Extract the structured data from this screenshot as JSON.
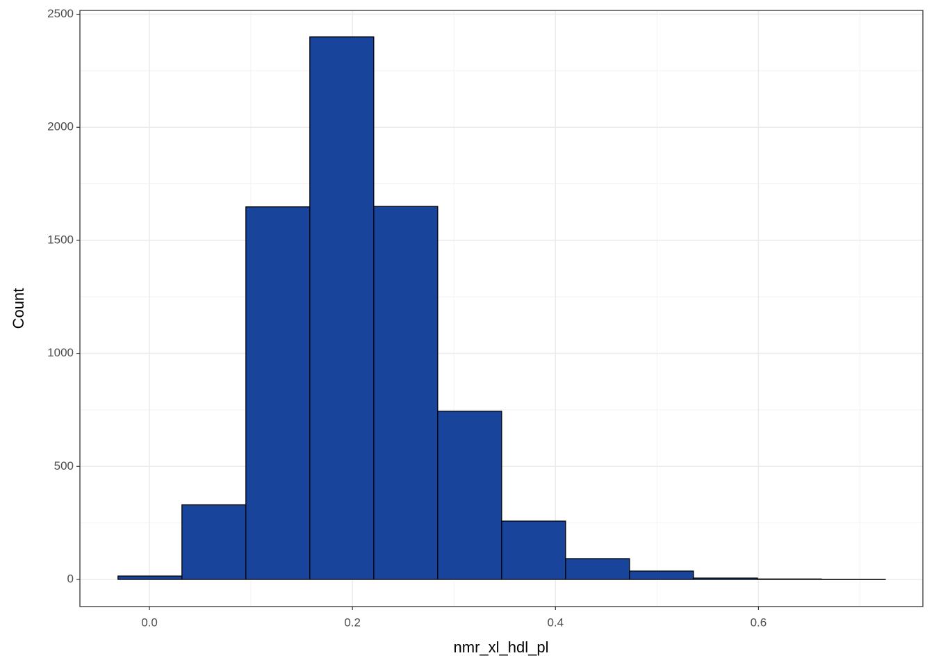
{
  "chart_data": {
    "type": "histogram",
    "x_label": "nmr_xl_hdl_pl",
    "y_label": "Count",
    "bins": [
      -0.031,
      0.032,
      0.095,
      0.158,
      0.221,
      0.284,
      0.347,
      0.41,
      0.473,
      0.536,
      0.599,
      0.662,
      0.725
    ],
    "values": [
      15,
      330,
      1648,
      2400,
      1650,
      744,
      258,
      92,
      37,
      6,
      2,
      1
    ],
    "color": "#19449b",
    "xlim": [
      -0.0685,
      0.762
    ],
    "ylim": [
      -120,
      2517
    ],
    "xticks": [
      {
        "value": 0,
        "label": "0.0"
      },
      0.2,
      0.4,
      0.6
    ],
    "yticks": [
      0,
      500,
      1000,
      1500,
      2000,
      2500
    ],
    "grid": true
  }
}
